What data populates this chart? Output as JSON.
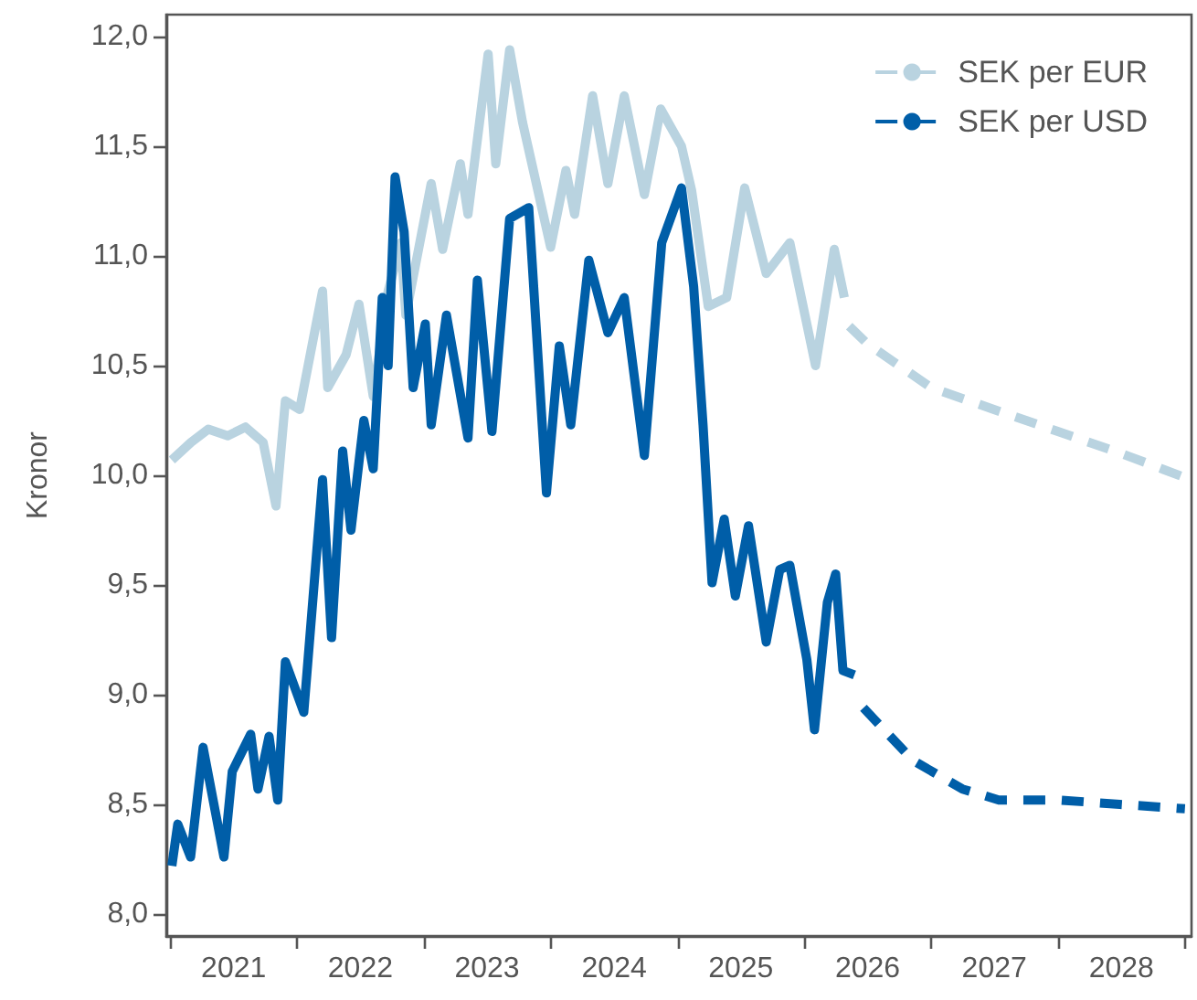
{
  "chart_data": {
    "type": "line",
    "ylabel": "Kronor",
    "xlim": [
      "2020-12-20",
      "2029-01-20"
    ],
    "ylim": [
      7.9,
      12.1
    ],
    "xticks": [
      {
        "value": "2021-01-01",
        "label": null
      },
      {
        "value": "2021-07-02",
        "label": "2021"
      },
      {
        "value": "2022-01-01",
        "label": null
      },
      {
        "value": "2022-07-02",
        "label": "2022"
      },
      {
        "value": "2023-01-01",
        "label": null
      },
      {
        "value": "2023-07-02",
        "label": "2023"
      },
      {
        "value": "2024-01-01",
        "label": null
      },
      {
        "value": "2024-07-02",
        "label": "2024"
      },
      {
        "value": "2025-01-01",
        "label": null
      },
      {
        "value": "2025-07-02",
        "label": "2025"
      },
      {
        "value": "2026-01-01",
        "label": null
      },
      {
        "value": "2026-07-02",
        "label": "2026"
      },
      {
        "value": "2027-01-01",
        "label": null
      },
      {
        "value": "2027-07-02",
        "label": "2027"
      },
      {
        "value": "2028-01-01",
        "label": null
      },
      {
        "value": "2028-07-02",
        "label": "2028"
      },
      {
        "value": "2029-01-01",
        "label": null
      }
    ],
    "yticks": [
      {
        "value": 8,
        "label": "8,0"
      },
      {
        "value": 8.5,
        "label": "8,5"
      },
      {
        "value": 9,
        "label": "9,0"
      },
      {
        "value": 9.5,
        "label": "9,5"
      },
      {
        "value": 10,
        "label": "10,0"
      },
      {
        "value": 10.5,
        "label": "10,5"
      },
      {
        "value": 11,
        "label": "11,0"
      },
      {
        "value": 11.5,
        "label": "11,5"
      },
      {
        "value": 12,
        "label": "12,0"
      }
    ],
    "grid": false,
    "legend": "top right",
    "marker": "none",
    "series": [
      {
        "color": "#b9d3e0",
        "line_style": "solid",
        "x": [
          "2021-01-05",
          "2021-03-01",
          "2021-04-20",
          "2021-06-15",
          "2021-08-05",
          "2021-09-25",
          "2021-11-01",
          "2021-11-28",
          "2022-01-08",
          "2022-03-15",
          "2022-03-30",
          "2022-05-22",
          "2022-06-28",
          "2022-08-08",
          "2022-09-20",
          "2022-10-27",
          "2022-11-10",
          "2023-01-22",
          "2023-02-24",
          "2023-04-16",
          "2023-05-08",
          "2023-07-05",
          "2023-07-27",
          "2023-09-05",
          "2023-10-12",
          "2024-01-01",
          "2024-02-14",
          "2024-03-10",
          "2024-05-01",
          "2024-06-14",
          "2024-07-31",
          "2024-09-27",
          "2024-11-13",
          "2025-01-12",
          "2025-02-10",
          "2025-03-30",
          "2025-05-22",
          "2025-07-13",
          "2025-09-13",
          "2025-11-20",
          "2026-02-02",
          "2026-03-28",
          "2026-04-26"
        ],
        "values": [
          10.07,
          10.15,
          10.21,
          10.18,
          10.22,
          10.15,
          9.86,
          10.34,
          10.3,
          10.84,
          10.4,
          10.55,
          10.78,
          10.36,
          10.84,
          11.06,
          10.73,
          11.33,
          11.03,
          11.42,
          11.19,
          11.92,
          11.42,
          11.94,
          11.61,
          11.04,
          11.39,
          11.19,
          11.73,
          11.33,
          11.73,
          11.28,
          11.67,
          11.5,
          11.3,
          10.77,
          10.81,
          11.31,
          10.92,
          11.06,
          10.5,
          11.03,
          10.81
        ]
      },
      {
        "color": "#005ea8",
        "line_style": "solid",
        "x": [
          "2021-01-05",
          "2021-01-22",
          "2021-02-28",
          "2021-04-05",
          "2021-06-04",
          "2021-06-28",
          "2021-08-20",
          "2021-09-10",
          "2021-10-12",
          "2021-11-06",
          "2021-11-28",
          "2022-01-20",
          "2022-03-15",
          "2022-04-10",
          "2022-05-12",
          "2022-06-05",
          "2022-07-12",
          "2022-08-08",
          "2022-09-03",
          "2022-09-20",
          "2022-10-10",
          "2022-11-05",
          "2022-12-01",
          "2023-01-05",
          "2023-01-22",
          "2023-03-07",
          "2023-05-08",
          "2023-06-04",
          "2023-07-16",
          "2023-09-05",
          "2023-10-30",
          "2023-12-20",
          "2024-01-26",
          "2024-02-28",
          "2024-04-20",
          "2024-06-14",
          "2024-07-31",
          "2024-09-27",
          "2024-11-16",
          "2025-01-12",
          "2025-02-16",
          "2025-03-15",
          "2025-04-10",
          "2025-05-15",
          "2025-06-16",
          "2025-07-24",
          "2025-09-13",
          "2025-10-22",
          "2025-11-20",
          "2026-01-08",
          "2026-01-30",
          "2026-03-08",
          "2026-04-01",
          "2026-04-22",
          "2026-05-25"
        ],
        "values": [
          8.22,
          8.41,
          8.26,
          8.76,
          8.26,
          8.65,
          8.82,
          8.57,
          8.81,
          8.52,
          9.15,
          8.92,
          9.98,
          9.26,
          10.11,
          9.75,
          10.25,
          10.03,
          10.81,
          10.5,
          11.36,
          11.11,
          10.4,
          10.69,
          10.23,
          10.73,
          10.17,
          10.89,
          10.2,
          11.17,
          11.22,
          9.92,
          10.59,
          10.23,
          10.98,
          10.65,
          10.81,
          10.09,
          11.06,
          11.31,
          10.86,
          10.23,
          9.51,
          9.8,
          9.45,
          9.77,
          9.24,
          9.57,
          9.59,
          9.16,
          8.84,
          9.42,
          9.55,
          9.11,
          9.09
        ]
      },
      {
        "name": "SEK per EUR",
        "color": "#b9d3e0",
        "line_style": "dashed",
        "x": [
          "2026-05-10",
          "2026-07-01",
          "2027-01-01",
          "2027-07-01",
          "2028-01-01",
          "2028-07-01",
          "2029-01-01"
        ],
        "values": [
          10.68,
          10.6,
          10.4,
          10.3,
          10.2,
          10.1,
          9.99
        ]
      },
      {
        "name": "SEK per USD",
        "color": "#005ea8",
        "line_style": "dashed",
        "x": [
          "2026-06-20",
          "2026-11-10",
          "2027-04-01",
          "2027-07-15",
          "2028-01-05",
          "2028-06-28",
          "2029-01-01"
        ],
        "values": [
          8.94,
          8.7,
          8.57,
          8.52,
          8.52,
          8.5,
          8.48
        ]
      }
    ]
  }
}
